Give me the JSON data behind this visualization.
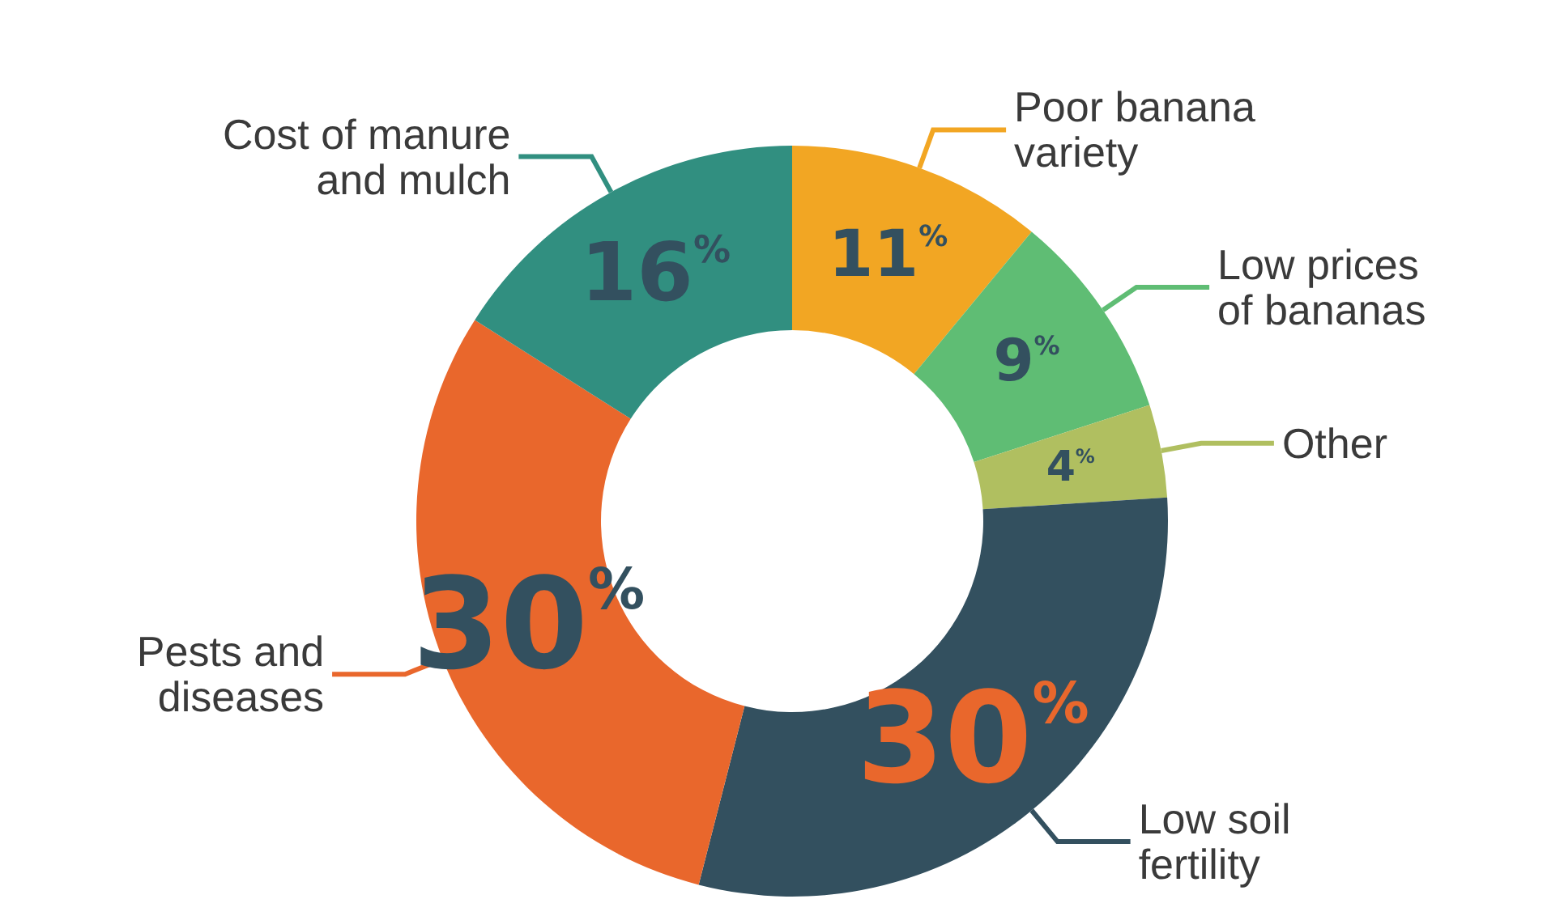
{
  "chart_data": {
    "type": "donut",
    "categories": [
      "Poor banana\nvariety",
      "Low prices\nof bananas",
      "Other",
      "Low soil\nfertility",
      "Pests and\ndiseases",
      "Cost of manure\nand mulch"
    ],
    "values": [
      11,
      9,
      4,
      30,
      30,
      16
    ],
    "value_labels": [
      "11%",
      "9%",
      "4%",
      "30%",
      "30%",
      "16%"
    ],
    "colors": [
      "#f2a623",
      "#5fbd74",
      "#b0bf60",
      "#33505f",
      "#e9672c",
      "#318f80"
    ],
    "legend": false
  }
}
